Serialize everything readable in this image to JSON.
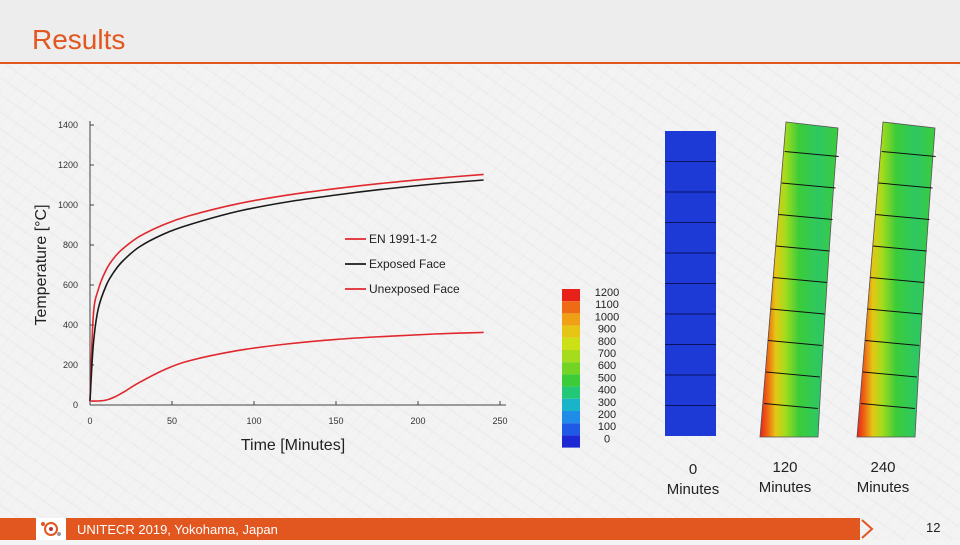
{
  "header": {
    "title": "Results"
  },
  "footer": {
    "text": "UNITECR 2019, Yokohama, Japan",
    "page": "12"
  },
  "colors": {
    "accent": "#e2561f",
    "red_series": "#e0282e",
    "black_series": "#1a1a1a"
  },
  "chart_data": {
    "type": "line",
    "title": "",
    "xlabel": "Time [Minutes]",
    "ylabel": "Temperature [°C]",
    "xlim": [
      0,
      250
    ],
    "ylim": [
      0,
      1400
    ],
    "xticks": [
      0,
      50,
      100,
      150,
      200,
      250
    ],
    "yticks": [
      0,
      200,
      400,
      600,
      800,
      1000,
      1200,
      1400
    ],
    "grid": false,
    "legend_position": "right",
    "series": [
      {
        "name": "EN 1991-1-2",
        "color": "#e0282e",
        "x": [
          0,
          2,
          5,
          10,
          15,
          20,
          30,
          45,
          60,
          90,
          120,
          150,
          180,
          210,
          240
        ],
        "y": [
          20,
          445,
          576,
          678,
          739,
          781,
          842,
          902,
          945,
          1006,
          1049,
          1082,
          1110,
          1133,
          1153
        ]
      },
      {
        "name": "Exposed Face",
        "color": "#1a1a1a",
        "x": [
          0,
          2,
          5,
          10,
          15,
          20,
          30,
          45,
          60,
          90,
          120,
          150,
          180,
          210,
          240
        ],
        "y": [
          20,
          300,
          480,
          600,
          670,
          720,
          790,
          855,
          900,
          968,
          1015,
          1050,
          1080,
          1105,
          1125
        ]
      },
      {
        "name": "Unexposed Face",
        "color": "#e0282e",
        "x": [
          0,
          5,
          10,
          15,
          20,
          30,
          45,
          60,
          90,
          120,
          150,
          180,
          210,
          240
        ],
        "y": [
          20,
          20,
          25,
          40,
          62,
          112,
          175,
          220,
          272,
          305,
          328,
          343,
          355,
          363
        ]
      }
    ]
  },
  "colorbar": {
    "labels": [
      "1200",
      "1100",
      "1000",
      "900",
      "800",
      "700",
      "600",
      "500",
      "400",
      "300",
      "200",
      "100",
      "0"
    ],
    "colors": [
      "#e8201a",
      "#ee6a14",
      "#f0a014",
      "#e6c614",
      "#cce016",
      "#a6dc1c",
      "#74d424",
      "#3ccc3a",
      "#22c878",
      "#1ab4c8",
      "#1e8ce8",
      "#1e5ae6",
      "#1e28d2"
    ]
  },
  "snapshots": [
    {
      "value": "0",
      "unit": "Minutes"
    },
    {
      "value": "120",
      "unit": "Minutes"
    },
    {
      "value": "240",
      "unit": "Minutes"
    }
  ]
}
